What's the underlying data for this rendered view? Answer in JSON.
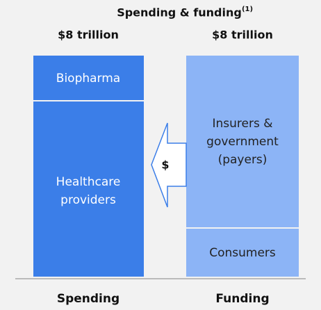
{
  "title": "Spending & funding",
  "title_note": "(1)",
  "arrow_label": "$",
  "columns": [
    {
      "header": "$8 trillion",
      "footer": "Spending",
      "segments": [
        {
          "lines": [
            "Biopharma"
          ]
        },
        {
          "lines": [
            "Healthcare",
            "providers"
          ]
        }
      ]
    },
    {
      "header": "$8 trillion",
      "footer": "Funding",
      "segments": [
        {
          "lines": [
            "Insurers &",
            "government",
            "(payers)"
          ]
        },
        {
          "lines": [
            "Consumers"
          ]
        }
      ]
    }
  ]
}
